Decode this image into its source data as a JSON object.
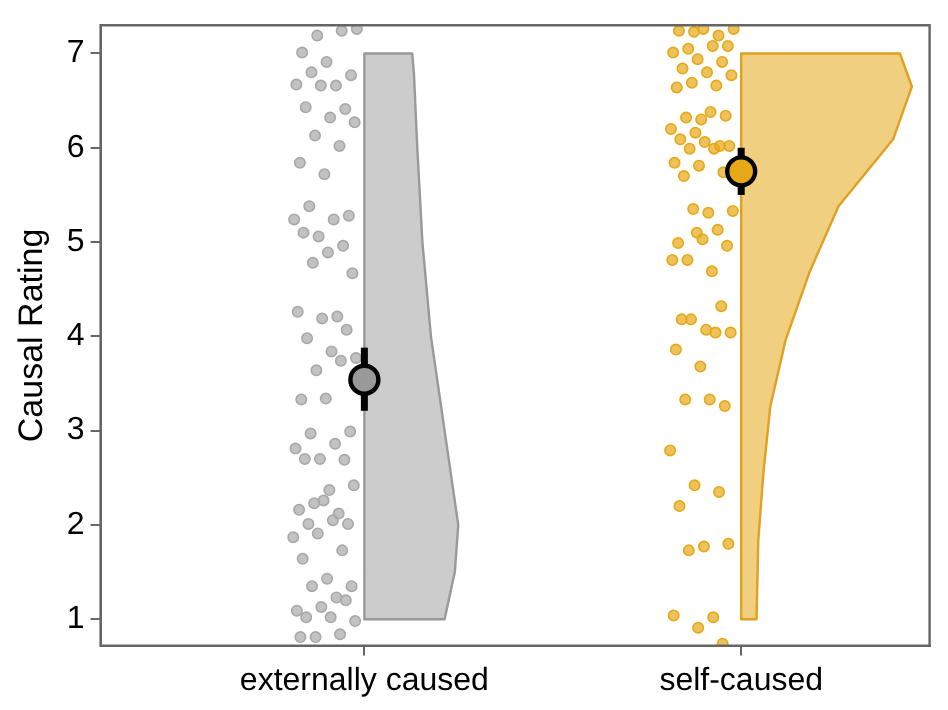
{
  "chart_data": {
    "type": "scatter",
    "ylabel": "Causal Rating",
    "categories": [
      "externally caused",
      "self-caused"
    ],
    "ylim": [
      0.72,
      7.3
    ],
    "yticks": [
      1,
      2,
      3,
      4,
      5,
      6,
      7
    ],
    "grid": false,
    "series": [
      {
        "color": "#a8a8a8",
        "x": [
          "externally caused",
          "externally caused",
          "externally caused",
          "externally caused",
          "externally caused",
          "externally caused",
          "externally caused",
          "externally caused",
          "externally caused",
          "externally caused",
          "externally caused",
          "externally caused",
          "externally caused",
          "externally caused",
          "externally caused",
          "externally caused",
          "externally caused",
          "externally caused",
          "externally caused",
          "externally caused",
          "externally caused",
          "externally caused",
          "externally caused",
          "externally caused",
          "externally caused",
          "externally caused",
          "externally caused",
          "externally caused",
          "externally caused",
          "externally caused",
          "externally caused",
          "externally caused",
          "externally caused",
          "externally caused",
          "externally caused",
          "externally caused",
          "externally caused",
          "externally caused",
          "externally caused",
          "externally caused",
          "externally caused",
          "externally caused",
          "externally caused",
          "externally caused",
          "externally caused",
          "externally caused",
          "externally caused",
          "externally caused",
          "externally caused",
          "externally caused",
          "externally caused",
          "externally caused",
          "externally caused",
          "externally caused",
          "externally caused",
          "externally caused",
          "externally caused",
          "externally caused",
          "externally caused",
          "externally caused",
          "externally caused",
          "externally caused",
          "externally caused",
          "externally caused",
          "externally caused",
          "externally caused",
          "externally caused",
          "externally caused",
          "externally caused",
          "externally caused",
          "externally caused",
          "externally caused"
        ],
        "values": [
          7.26,
          7.19,
          7.24,
          7.01,
          6.91,
          6.77,
          6.8,
          6.66,
          6.67,
          6.66,
          6.41,
          6.43,
          6.32,
          6.27,
          6.13,
          6.02,
          5.84,
          5.72,
          5.28,
          5.38,
          5.24,
          5.24,
          5.06,
          4.96,
          5.1,
          4.89,
          4.67,
          4.78,
          4.21,
          4.26,
          4.19,
          4.07,
          3.98,
          3.84,
          3.77,
          3.64,
          3.74,
          3.33,
          3.34,
          2.99,
          2.97,
          2.86,
          2.81,
          2.7,
          2.69,
          2.7,
          2.37,
          2.42,
          2.23,
          2.12,
          2.16,
          2.26,
          2.01,
          2.01,
          2.05,
          1.87,
          1.91,
          1.73,
          1.64,
          1.43,
          1.35,
          1.35,
          1.23,
          1.09,
          1.13,
          1.2,
          1.02,
          1.02,
          0.98,
          0.81,
          0.84,
          0.81
        ]
      },
      {
        "color": "#e6a817",
        "x": [
          "self-caused",
          "self-caused",
          "self-caused",
          "self-caused",
          "self-caused",
          "self-caused",
          "self-caused",
          "self-caused",
          "self-caused",
          "self-caused",
          "self-caused",
          "self-caused",
          "self-caused",
          "self-caused",
          "self-caused",
          "self-caused",
          "self-caused",
          "self-caused",
          "self-caused",
          "self-caused",
          "self-caused",
          "self-caused",
          "self-caused",
          "self-caused",
          "self-caused",
          "self-caused",
          "self-caused",
          "self-caused",
          "self-caused",
          "self-caused",
          "self-caused",
          "self-caused",
          "self-caused",
          "self-caused",
          "self-caused",
          "self-caused",
          "self-caused",
          "self-caused",
          "self-caused",
          "self-caused",
          "self-caused",
          "self-caused",
          "self-caused",
          "self-caused",
          "self-caused",
          "self-caused",
          "self-caused",
          "self-caused",
          "self-caused",
          "self-caused",
          "self-caused",
          "self-caused",
          "self-caused",
          "self-caused",
          "self-caused",
          "self-caused",
          "self-caused",
          "self-caused",
          "self-caused",
          "self-caused",
          "self-caused",
          "self-caused",
          "self-caused",
          "self-caused",
          "self-caused",
          "self-caused"
        ],
        "values": [
          7.26,
          7.23,
          7.19,
          7.24,
          7.26,
          7.08,
          7.05,
          7.08,
          7.01,
          6.94,
          6.91,
          6.84,
          6.8,
          6.77,
          6.69,
          6.66,
          6.64,
          6.3,
          6.34,
          6.32,
          6.38,
          6.2,
          6.16,
          6.02,
          6.09,
          6.06,
          6.02,
          5.99,
          5.99,
          5.84,
          5.81,
          5.74,
          5.7,
          5.31,
          5.33,
          5.35,
          5.13,
          4.99,
          5.03,
          4.96,
          4.81,
          4.69,
          4.81,
          5.1,
          4.32,
          4.18,
          4.07,
          4.04,
          4.18,
          4.04,
          3.86,
          3.68,
          3.26,
          3.33,
          3.33,
          2.79,
          2.42,
          2.35,
          2.2,
          1.77,
          1.8,
          1.73,
          1.02,
          1.04,
          0.91,
          0.74
        ]
      },
      {
        "colors": [
          "#999999",
          "#e6a817"
        ],
        "x": [
          "externally caused",
          "self-caused"
        ],
        "values": [
          3.54,
          5.75
        ],
        "errors": [
          [
            3.21,
            3.88
          ],
          [
            5.5,
            6.0
          ]
        ]
      }
    ]
  }
}
